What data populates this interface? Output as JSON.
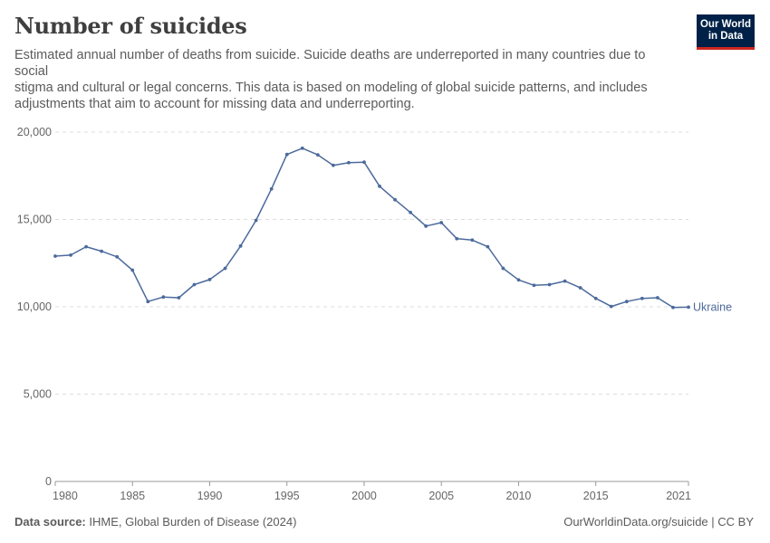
{
  "header": {
    "title": "Number of suicides",
    "subtitle_lines": [
      "Estimated annual number of deaths from suicide. Suicide deaths are underreported in many countries due to social",
      "stigma and cultural or legal concerns. This data is based on modeling of global suicide patterns, and includes",
      "adjustments that aim to account for missing data and underreporting."
    ],
    "logo_line1": "Our World",
    "logo_line2": "in Data"
  },
  "footer": {
    "source_label": "Data source:",
    "source_text": " IHME, Global Burden of Disease (2024)",
    "url": "OurWorldinData.org/suicide | CC BY"
  },
  "colors": {
    "series": "#4c6a9c",
    "grid": "#dddddd",
    "axis": "#999999"
  },
  "chart_data": {
    "type": "line",
    "title": "Number of suicides",
    "xlabel": "",
    "ylabel": "",
    "xlim": [
      1980,
      2021
    ],
    "ylim": [
      0,
      20000
    ],
    "x_ticks": [
      1980,
      1985,
      1990,
      1995,
      2000,
      2005,
      2010,
      2015,
      2021
    ],
    "y_ticks": [
      0,
      5000,
      10000,
      15000,
      20000
    ],
    "y_tick_labels": [
      "0",
      "5,000",
      "10,000",
      "15,000",
      "20,000"
    ],
    "grid": "horizontal dashed",
    "series": [
      {
        "name": "Ukraine",
        "x": [
          1980,
          1981,
          1982,
          1983,
          1984,
          1985,
          1986,
          1987,
          1988,
          1989,
          1990,
          1991,
          1992,
          1993,
          1994,
          1995,
          1996,
          1997,
          1998,
          1999,
          2000,
          2001,
          2002,
          2003,
          2004,
          2005,
          2006,
          2007,
          2008,
          2009,
          2010,
          2011,
          2012,
          2013,
          2014,
          2015,
          2016,
          2017,
          2018,
          2019,
          2020,
          2021
        ],
        "values": [
          12900,
          12960,
          13440,
          13180,
          12860,
          12100,
          10300,
          10560,
          10520,
          11270,
          11560,
          12200,
          13480,
          14950,
          16750,
          18720,
          19080,
          18700,
          18100,
          18250,
          18280,
          16900,
          16130,
          15400,
          14620,
          14820,
          13900,
          13820,
          13440,
          12200,
          11540,
          11230,
          11270,
          11470,
          11090,
          10480,
          10020,
          10300,
          10480,
          10520,
          9960,
          9980
        ]
      }
    ]
  }
}
